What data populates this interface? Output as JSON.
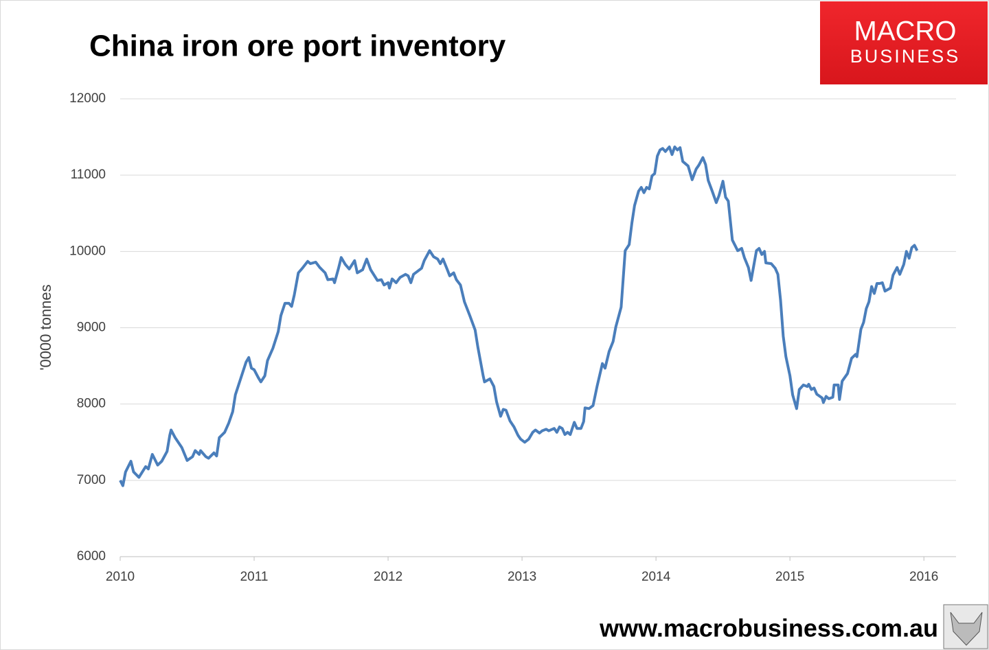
{
  "chart_data": {
    "type": "line",
    "title": "China iron ore port inventory",
    "y_label": "'0000 tonnes",
    "x": [
      2010.0,
      2010.02,
      2010.04,
      2010.08,
      2010.1,
      2010.14,
      2010.19,
      2010.21,
      2010.24,
      2010.28,
      2010.31,
      2010.35,
      2010.37,
      2010.38,
      2010.41,
      2010.46,
      2010.5,
      2010.54,
      2010.56,
      2010.59,
      2010.6,
      2010.64,
      2010.66,
      2010.7,
      2010.72,
      2010.74,
      2010.78,
      2010.81,
      2010.84,
      2010.86,
      2010.91,
      2010.94,
      2010.96,
      2010.98,
      2011.0,
      2011.03,
      2011.05,
      2011.08,
      2011.1,
      2011.14,
      2011.18,
      2011.2,
      2011.23,
      2011.26,
      2011.28,
      2011.3,
      2011.33,
      2011.36,
      2011.4,
      2011.42,
      2011.46,
      2011.49,
      2011.53,
      2011.55,
      2011.59,
      2011.6,
      2011.63,
      2011.65,
      2011.68,
      2011.71,
      2011.75,
      2011.77,
      2011.81,
      2011.84,
      2011.87,
      2011.92,
      2011.95,
      2011.97,
      2012.0,
      2012.01,
      2012.03,
      2012.06,
      2012.09,
      2012.13,
      2012.15,
      2012.17,
      2012.19,
      2012.25,
      2012.27,
      2012.31,
      2012.34,
      2012.37,
      2012.39,
      2012.41,
      2012.44,
      2012.46,
      2012.49,
      2012.51,
      2012.54,
      2012.57,
      2012.61,
      2012.65,
      2012.67,
      2012.71,
      2012.72,
      2012.76,
      2012.79,
      2012.81,
      2012.84,
      2012.86,
      2012.88,
      2012.91,
      2012.94,
      2012.97,
      2012.99,
      2013.02,
      2013.05,
      2013.08,
      2013.1,
      2013.13,
      2013.15,
      2013.18,
      2013.2,
      2013.24,
      2013.26,
      2013.28,
      2013.3,
      2013.32,
      2013.34,
      2013.36,
      2013.39,
      2013.41,
      2013.44,
      2013.46,
      2013.47,
      2013.5,
      2013.53,
      2013.56,
      2013.6,
      2013.62,
      2013.65,
      2013.68,
      2013.7,
      2013.74,
      2013.77,
      2013.8,
      2013.82,
      2013.84,
      2013.87,
      2013.89,
      2013.91,
      2013.93,
      2013.95,
      2013.97,
      2013.99,
      2014.01,
      2014.03,
      2014.05,
      2014.07,
      2014.1,
      2014.12,
      2014.14,
      2014.16,
      2014.18,
      2014.2,
      2014.24,
      2014.27,
      2014.3,
      2014.32,
      2014.35,
      2014.37,
      2014.39,
      2014.42,
      2014.45,
      2014.47,
      2014.5,
      2014.52,
      2014.54,
      2014.57,
      2014.61,
      2014.64,
      2014.66,
      2014.69,
      2014.71,
      2014.75,
      2014.77,
      2014.79,
      2014.81,
      2014.82,
      2014.86,
      2014.89,
      2014.91,
      2014.93,
      2014.95,
      2014.97,
      2015.0,
      2015.02,
      2015.05,
      2015.07,
      2015.1,
      2015.13,
      2015.14,
      2015.16,
      2015.18,
      2015.2,
      2015.24,
      2015.25,
      2015.27,
      2015.29,
      2015.32,
      2015.33,
      2015.36,
      2015.37,
      2015.39,
      2015.43,
      2015.46,
      2015.49,
      2015.5,
      2015.53,
      2015.55,
      2015.57,
      2015.59,
      2015.61,
      2015.63,
      2015.65,
      2015.67,
      2015.69,
      2015.71,
      2015.75,
      2015.77,
      2015.8,
      2015.82,
      2015.85,
      2015.87,
      2015.89,
      2015.91,
      2015.93,
      2015.95
    ],
    "series": [
      {
        "color": "#4a7ebb",
        "values": [
          7000,
          6930,
          7110,
          7250,
          7110,
          7040,
          7180,
          7150,
          7340,
          7200,
          7250,
          7380,
          7590,
          7660,
          7560,
          7430,
          7260,
          7310,
          7390,
          7340,
          7390,
          7310,
          7290,
          7360,
          7320,
          7560,
          7630,
          7750,
          7900,
          8120,
          8390,
          8550,
          8610,
          8470,
          8450,
          8350,
          8290,
          8370,
          8570,
          8730,
          8950,
          9160,
          9320,
          9320,
          9280,
          9430,
          9720,
          9780,
          9870,
          9840,
          9860,
          9790,
          9720,
          9630,
          9640,
          9590,
          9780,
          9920,
          9830,
          9770,
          9880,
          9720,
          9760,
          9900,
          9760,
          9620,
          9630,
          9560,
          9590,
          9520,
          9640,
          9590,
          9660,
          9700,
          9680,
          9590,
          9700,
          9780,
          9880,
          10010,
          9930,
          9900,
          9840,
          9900,
          9770,
          9680,
          9720,
          9630,
          9560,
          9340,
          9160,
          8970,
          8750,
          8370,
          8290,
          8330,
          8230,
          8030,
          7840,
          7930,
          7920,
          7780,
          7700,
          7590,
          7540,
          7500,
          7540,
          7630,
          7660,
          7620,
          7650,
          7670,
          7650,
          7680,
          7630,
          7700,
          7680,
          7600,
          7630,
          7600,
          7760,
          7680,
          7680,
          7770,
          7950,
          7940,
          7980,
          8230,
          8530,
          8470,
          8690,
          8820,
          9010,
          9270,
          10010,
          10090,
          10370,
          10600,
          10790,
          10840,
          10770,
          10840,
          10820,
          10990,
          11020,
          11250,
          11330,
          11350,
          11310,
          11370,
          11270,
          11370,
          11330,
          11360,
          11180,
          11120,
          10940,
          11080,
          11130,
          11230,
          11140,
          10930,
          10790,
          10640,
          10730,
          10920,
          10710,
          10660,
          10150,
          10010,
          10040,
          9920,
          9790,
          9620,
          10010,
          10040,
          9960,
          10000,
          9850,
          9840,
          9780,
          9700,
          9360,
          8890,
          8620,
          8370,
          8120,
          7940,
          8190,
          8250,
          8230,
          8260,
          8190,
          8210,
          8130,
          8080,
          8020,
          8100,
          8070,
          8090,
          8250,
          8250,
          8060,
          8300,
          8400,
          8600,
          8650,
          8620,
          8980,
          9070,
          9250,
          9340,
          9540,
          9450,
          9580,
          9580,
          9590,
          9480,
          9520,
          9690,
          9790,
          9700,
          9830,
          10000,
          9910,
          10050,
          10080,
          10010
        ]
      }
    ],
    "xlim": [
      2010,
      2016.24
    ],
    "xticks": [
      2010,
      2011,
      2012,
      2013,
      2014,
      2015,
      2016
    ],
    "ylim": [
      6000,
      12000
    ],
    "yticks": [
      6000,
      7000,
      8000,
      9000,
      10000,
      11000,
      12000
    ],
    "grid": true
  },
  "logo": {
    "line1": "MACRO",
    "line2": "BUSINESS"
  },
  "footer": {
    "url": "www.macrobusiness.com.au"
  }
}
